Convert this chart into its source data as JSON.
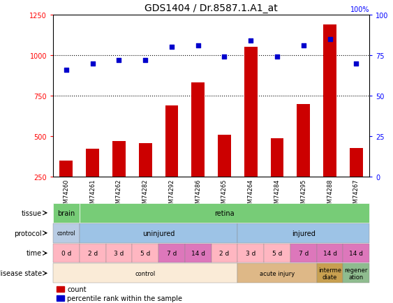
{
  "title": "GDS1404 / Dr.8587.1.A1_at",
  "samples": [
    "GSM74260",
    "GSM74261",
    "GSM74262",
    "GSM74282",
    "GSM74292",
    "GSM74286",
    "GSM74265",
    "GSM74264",
    "GSM74284",
    "GSM74295",
    "GSM74288",
    "GSM74267"
  ],
  "counts": [
    350,
    425,
    470,
    460,
    690,
    830,
    510,
    1050,
    490,
    700,
    1190,
    430
  ],
  "percentiles": [
    66,
    70,
    72,
    72,
    80,
    81,
    74,
    84,
    74,
    81,
    85,
    70
  ],
  "ylim_left": [
    250,
    1250
  ],
  "ylim_right": [
    0,
    100
  ],
  "yticks_left": [
    250,
    500,
    750,
    1000,
    1250
  ],
  "yticks_right": [
    0,
    25,
    50,
    75,
    100
  ],
  "bar_color": "#cc0000",
  "dot_color": "#0000cc",
  "row_labels": [
    "tissue",
    "protocol",
    "time",
    "disease state"
  ],
  "tissue_data": [
    [
      0,
      1,
      "#77cc77",
      "brain"
    ],
    [
      1,
      12,
      "#77cc77",
      "retina"
    ]
  ],
  "protocol_data": [
    [
      0,
      1,
      "#b8cce4",
      "control"
    ],
    [
      1,
      7,
      "#9dc3e6",
      "uninjured"
    ],
    [
      7,
      12,
      "#9dc3e6",
      "injured"
    ]
  ],
  "time_data": [
    [
      0,
      1,
      "#ffb6c1",
      "0 d"
    ],
    [
      1,
      2,
      "#ffb6c1",
      "2 d"
    ],
    [
      2,
      3,
      "#ffb6c1",
      "3 d"
    ],
    [
      3,
      4,
      "#ffb6c1",
      "5 d"
    ],
    [
      4,
      5,
      "#dd77bb",
      "7 d"
    ],
    [
      5,
      6,
      "#dd77bb",
      "14 d"
    ],
    [
      6,
      7,
      "#ffb6c1",
      "2 d"
    ],
    [
      7,
      8,
      "#ffb6c1",
      "3 d"
    ],
    [
      8,
      9,
      "#ffb6c1",
      "5 d"
    ],
    [
      9,
      10,
      "#dd77bb",
      "7 d"
    ],
    [
      10,
      11,
      "#dd77bb",
      "14 d"
    ],
    [
      11,
      12,
      "#dd77bb",
      "14 d"
    ]
  ],
  "disease_data": [
    [
      0,
      7,
      "#faebd7",
      "control"
    ],
    [
      7,
      10,
      "#deb887",
      "acute injury"
    ],
    [
      10,
      11,
      "#c8a050",
      "interme\ndiate"
    ],
    [
      11,
      12,
      "#8fbc8f",
      "regener\nation"
    ]
  ]
}
